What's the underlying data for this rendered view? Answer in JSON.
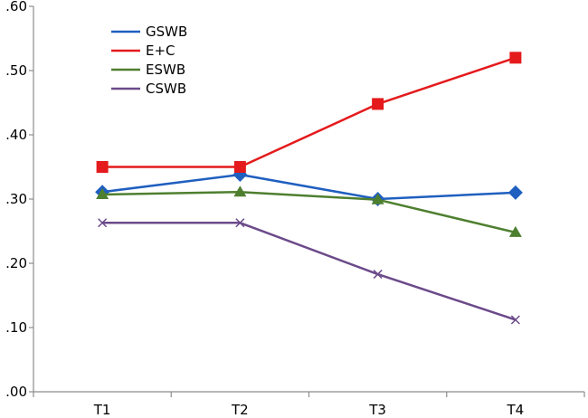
{
  "chart_data": {
    "type": "line",
    "categories": [
      "T1",
      "T2",
      "T3",
      "T4"
    ],
    "y_tick_labels": [
      ".00",
      ".10",
      ".20",
      ".30",
      ".40",
      ".50",
      ".60"
    ],
    "ylim": [
      0,
      0.6
    ],
    "grid": false,
    "legend_position": "top-left",
    "series": [
      {
        "name": "GSWB",
        "color": "#1f5fbf",
        "marker": "diamond",
        "values": [
          0.311,
          0.338,
          0.3,
          0.31
        ]
      },
      {
        "name": "E+C",
        "color": "#e41a1c",
        "marker": "square",
        "values": [
          0.35,
          0.35,
          0.448,
          0.52
        ]
      },
      {
        "name": "ESWB",
        "color": "#4e7f2f",
        "marker": "triangle",
        "values": [
          0.307,
          0.311,
          0.299,
          0.248
        ]
      },
      {
        "name": "CSWB",
        "color": "#6b4a8a",
        "marker": "x",
        "values": [
          0.263,
          0.263,
          0.183,
          0.112
        ]
      }
    ]
  }
}
